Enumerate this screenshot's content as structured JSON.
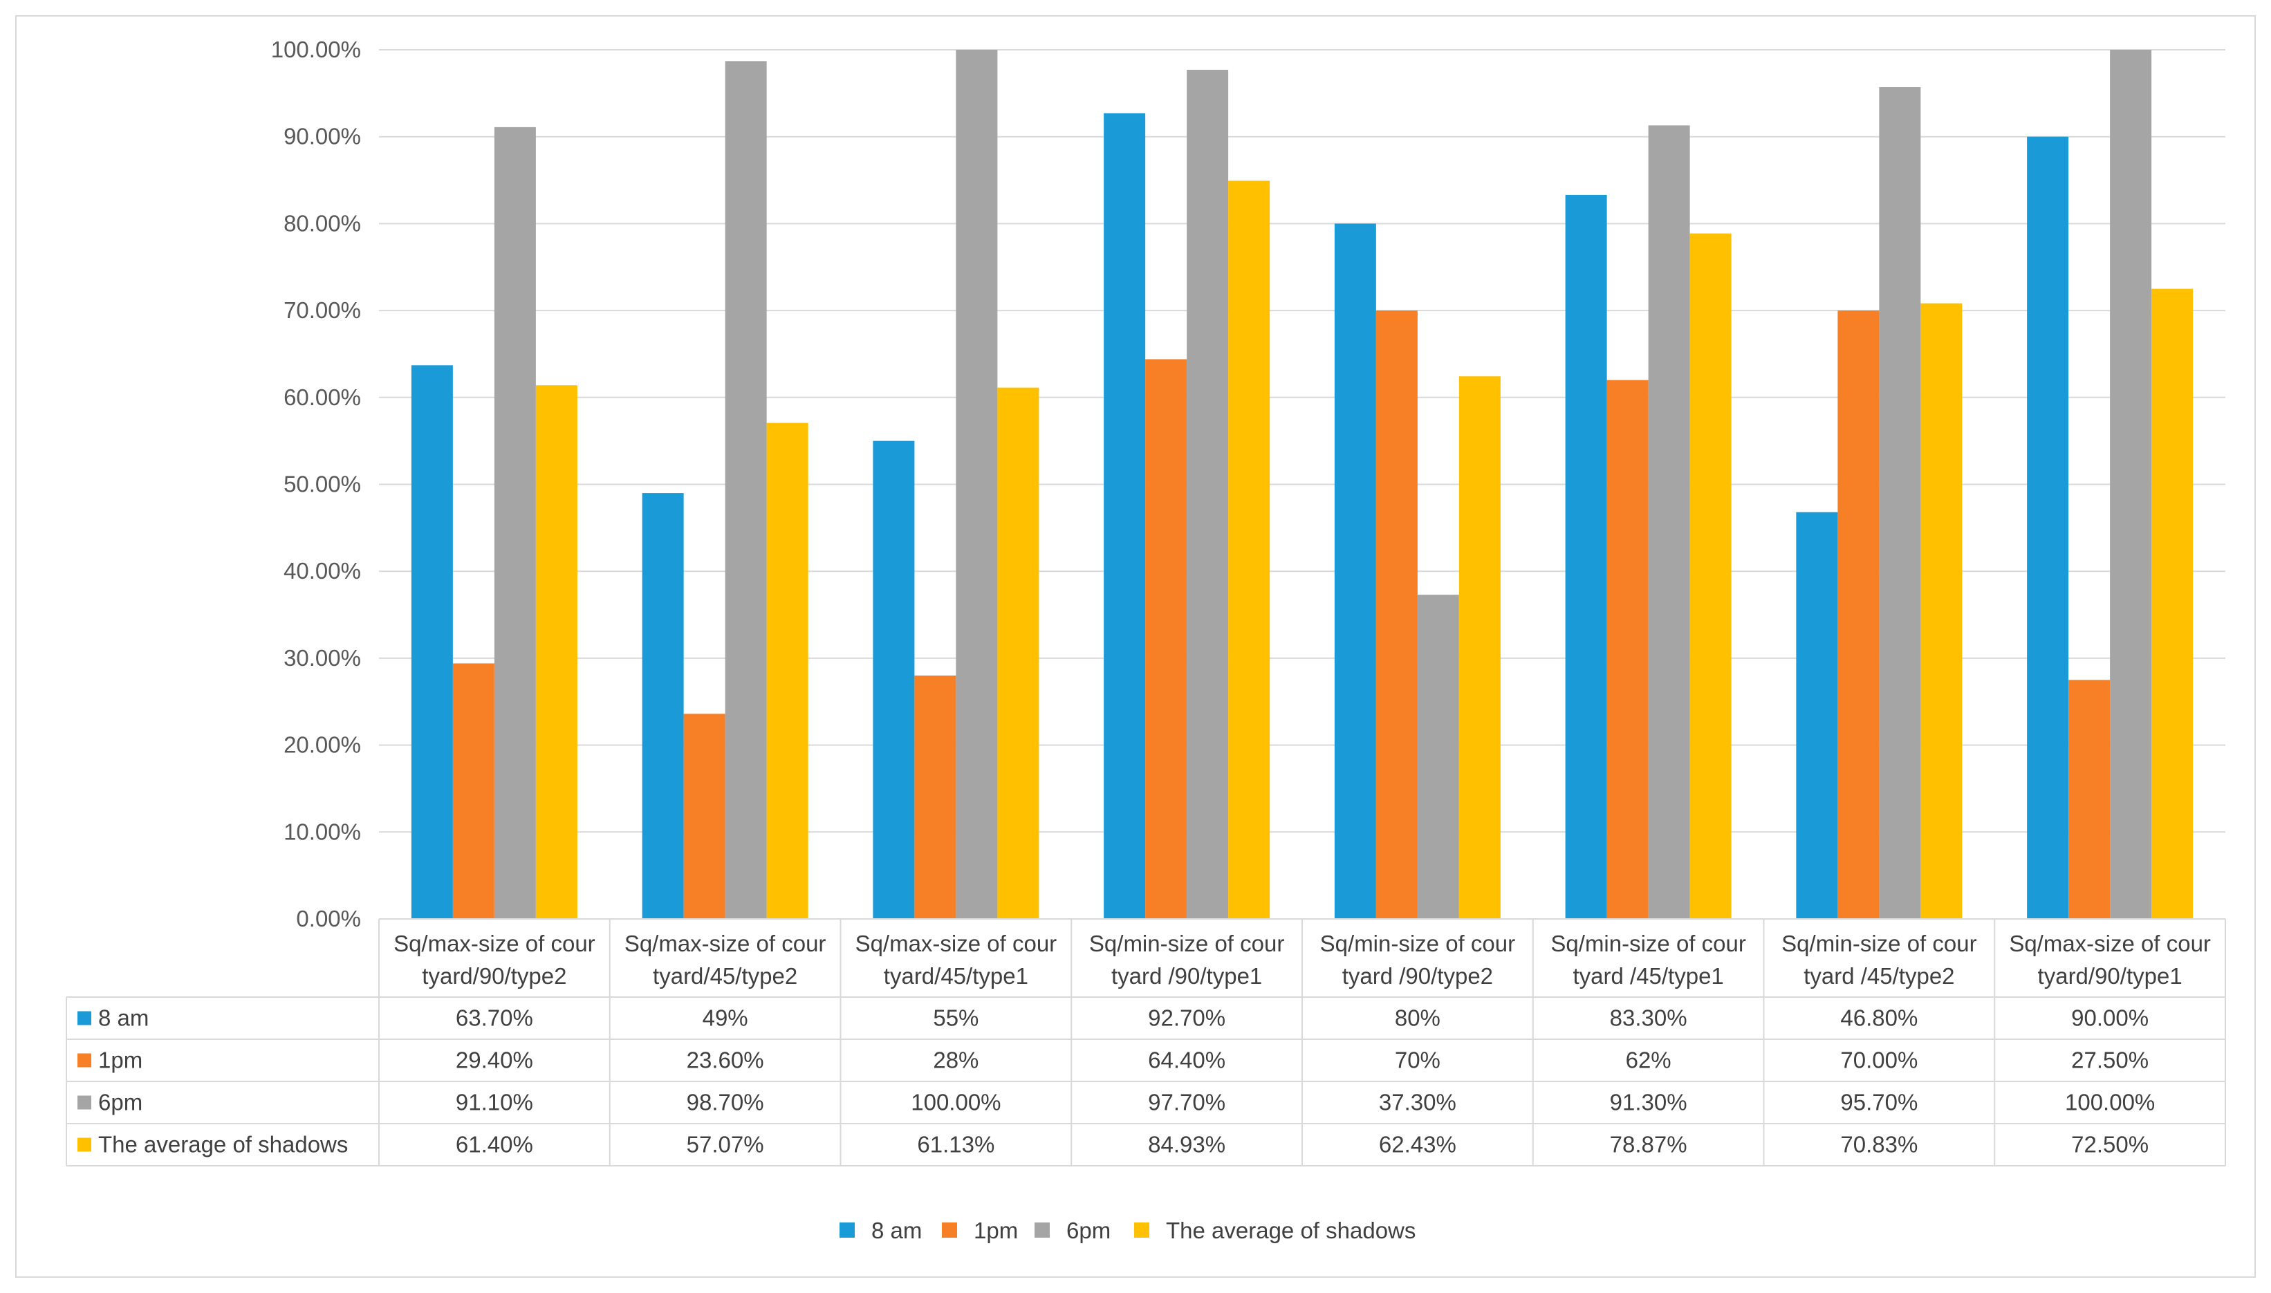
{
  "chart_data": {
    "type": "bar",
    "title": "",
    "xlabel": "",
    "ylabel": "",
    "ylim": [
      0,
      100
    ],
    "ytick_step": 10,
    "ytick_labels": [
      "0.00%",
      "10.00%",
      "20.00%",
      "30.00%",
      "40.00%",
      "50.00%",
      "60.00%",
      "70.00%",
      "80.00%",
      "90.00%",
      "100.00%"
    ],
    "categories": [
      [
        "Sq/max-size of cour",
        "tyard/90/type2"
      ],
      [
        "Sq/max-size of cour",
        "tyard/45/type2"
      ],
      [
        "Sq/max-size of cour",
        "tyard/45/type1"
      ],
      [
        "Sq/min-size of cour",
        "tyard /90/type1"
      ],
      [
        "Sq/min-size of cour",
        "tyard /90/type2"
      ],
      [
        "Sq/min-size of cour",
        "tyard /45/type1"
      ],
      [
        "Sq/min-size of cour",
        "tyard /45/type2"
      ],
      [
        "Sq/max-size of cour",
        "tyard/90/type1"
      ]
    ],
    "series": [
      {
        "name": "8 am",
        "color": "#1a9bd7",
        "values": [
          63.7,
          49,
          55,
          92.7,
          80,
          83.3,
          46.8,
          90.0
        ],
        "labels": [
          "63.70%",
          "49%",
          "55%",
          "92.70%",
          "80%",
          "83.30%",
          "46.80%",
          "90.00%"
        ]
      },
      {
        "name": "1pm",
        "color": "#f77f25",
        "values": [
          29.4,
          23.6,
          28,
          64.4,
          70,
          62,
          70.0,
          27.5
        ],
        "labels": [
          "29.40%",
          "23.60%",
          "28%",
          "64.40%",
          "70%",
          "62%",
          "70.00%",
          "27.50%"
        ]
      },
      {
        "name": "6pm",
        "color": "#a5a5a5",
        "values": [
          91.1,
          98.7,
          100.0,
          97.7,
          37.3,
          91.3,
          95.7,
          100.0
        ],
        "labels": [
          "91.10%",
          "98.70%",
          "100.00%",
          "97.70%",
          "37.30%",
          "91.30%",
          "95.70%",
          "100.00%"
        ]
      },
      {
        "name": "The average of shadows",
        "color": "#ffc000",
        "values": [
          61.4,
          57.07,
          61.13,
          84.93,
          62.43,
          78.87,
          70.83,
          72.5
        ],
        "labels": [
          "61.40%",
          "57.07%",
          "61.13%",
          "84.93%",
          "62.43%",
          "78.87%",
          "70.83%",
          "72.50%"
        ]
      }
    ],
    "grid": true,
    "legend": "bottom",
    "data_table": true
  }
}
